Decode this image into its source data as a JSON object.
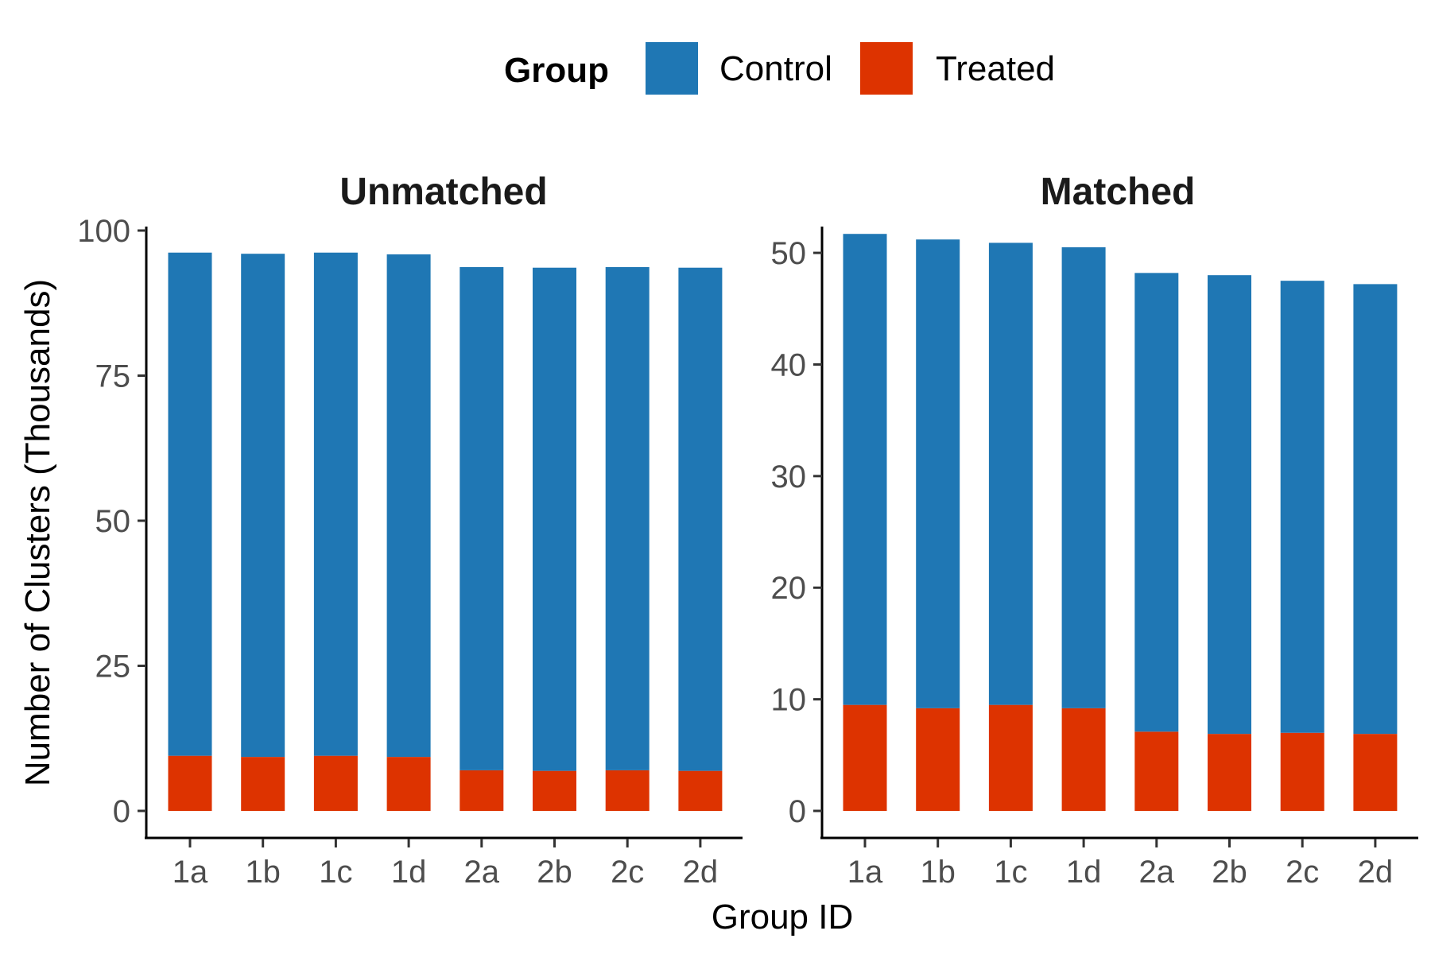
{
  "chart_data": {
    "type": "bar",
    "stacked": true,
    "legend": {
      "title": "Group",
      "position": "top",
      "entries": [
        {
          "name": "Control",
          "color": "#1F77B4"
        },
        {
          "name": "Treated",
          "color": "#DD3300"
        }
      ]
    },
    "xlabel": "Group ID",
    "ylabel": "Number of Clusters (Thousands)",
    "categories": [
      "1a",
      "1b",
      "1c",
      "1d",
      "2a",
      "2b",
      "2c",
      "2d"
    ],
    "grid": false,
    "panels": [
      {
        "title": "Unmatched",
        "ylim": [
          0,
          100
        ],
        "yticks": [
          0,
          25,
          50,
          75,
          100
        ],
        "series": [
          {
            "name": "Treated",
            "values": [
              9.5,
              9.3,
              9.5,
              9.3,
              7.0,
              6.9,
              7.0,
              6.9
            ]
          },
          {
            "name": "Control",
            "values": [
              86.7,
              86.7,
              86.7,
              86.6,
              86.7,
              86.7,
              86.7,
              86.7
            ]
          }
        ]
      },
      {
        "title": "Matched",
        "ylim": [
          0,
          52
        ],
        "yticks": [
          0,
          10,
          20,
          30,
          40,
          50
        ],
        "series": [
          {
            "name": "Treated",
            "values": [
              9.5,
              9.2,
              9.5,
              9.2,
              7.1,
              6.9,
              7.0,
              6.9
            ]
          },
          {
            "name": "Control",
            "values": [
              42.2,
              42.0,
              41.4,
              41.3,
              41.1,
              41.1,
              40.5,
              40.3
            ]
          }
        ]
      }
    ]
  }
}
